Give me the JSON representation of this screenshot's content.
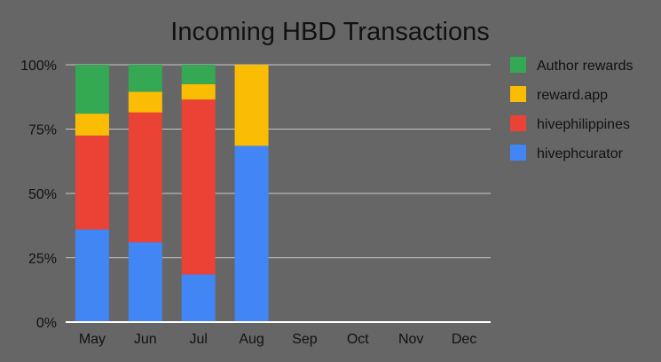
{
  "chart_data": {
    "type": "bar",
    "stacked": true,
    "percent_stacked": true,
    "title": "Incoming HBD Transactions",
    "xlabel": "",
    "ylabel": "",
    "categories": [
      "May",
      "Jun",
      "Jul",
      "Aug",
      "Sep",
      "Oct",
      "Nov",
      "Dec"
    ],
    "y_ticks": [
      "0%",
      "25%",
      "50%",
      "75%",
      "100%"
    ],
    "ylim": [
      0,
      100
    ],
    "grid": true,
    "legend_position": "right",
    "series": [
      {
        "name": "hivephcurator",
        "color": "#4285f4",
        "values": [
          36,
          31,
          18.5,
          68.5,
          0,
          0,
          0,
          0
        ]
      },
      {
        "name": "hivephilippines",
        "color": "#ea4335",
        "values": [
          36.5,
          50.5,
          68,
          0,
          0,
          0,
          0,
          0
        ]
      },
      {
        "name": "reward.app",
        "color": "#fbbc04",
        "values": [
          8.5,
          8,
          6,
          31.5,
          0,
          0,
          0,
          0
        ]
      },
      {
        "name": "Author rewards",
        "color": "#34a853",
        "values": [
          19,
          10.5,
          7.5,
          0,
          0,
          0,
          0,
          0
        ]
      }
    ],
    "legend_order": [
      "Author rewards",
      "reward.app",
      "hivephilippines",
      "hivephcurator"
    ]
  }
}
